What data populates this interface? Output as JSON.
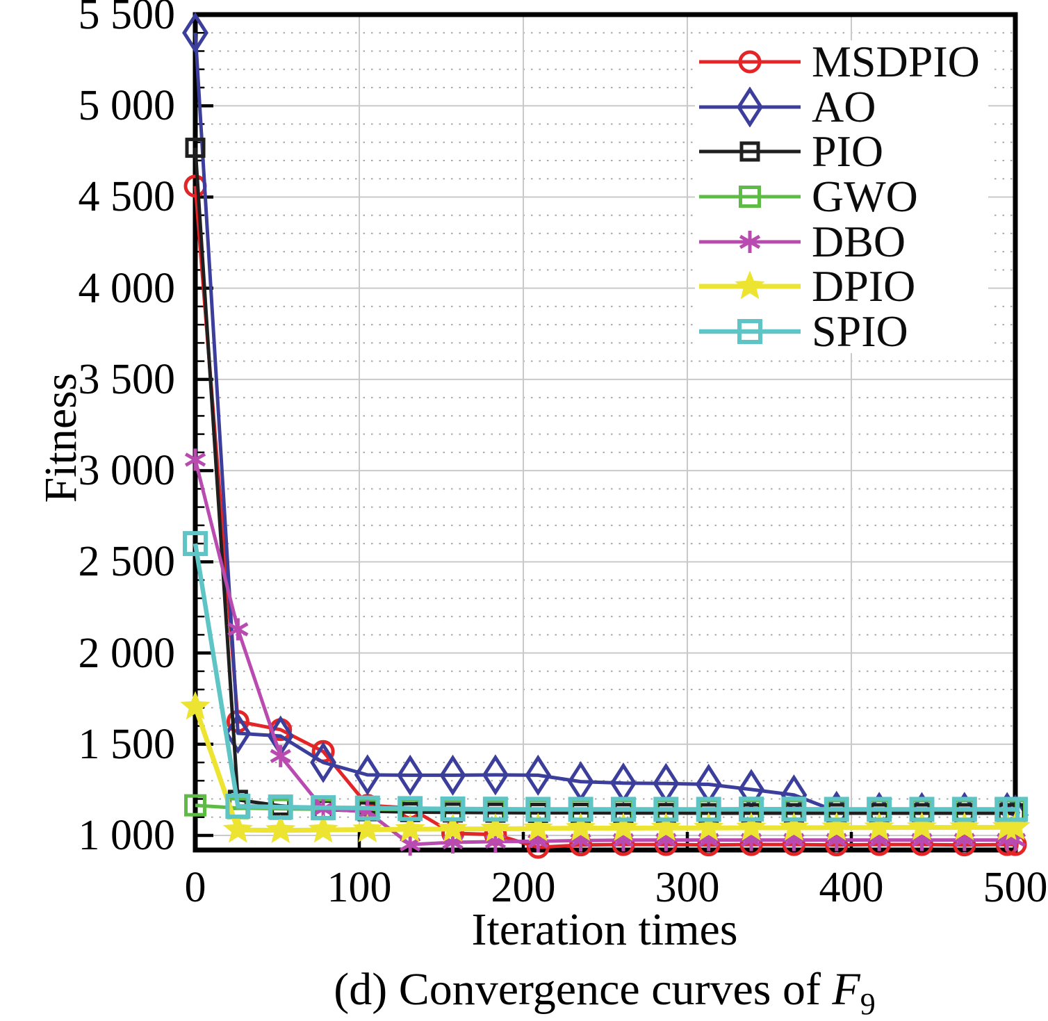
{
  "chart_data": {
    "type": "line",
    "title": "",
    "xlabel": "Iteration times",
    "ylabel": "Fitness",
    "caption": {
      "prefix": "(d) Convergence curves of ",
      "math": "F",
      "sub": "9"
    },
    "xlim": [
      0,
      500
    ],
    "ylim": [
      920,
      5500
    ],
    "grid": {
      "major": "solid",
      "minor_horizontal": "dotted"
    },
    "legend_position": "top-right-inside",
    "axis_color": "#000000",
    "grid_major_color": "#c9c9c9",
    "grid_minor_color": "#a8a8a8",
    "xticks": [
      {
        "value": 0,
        "label": "0"
      },
      {
        "value": 100,
        "label": "100"
      },
      {
        "value": 200,
        "label": "200"
      },
      {
        "value": 300,
        "label": "300"
      },
      {
        "value": 400,
        "label": "400"
      },
      {
        "value": 500,
        "label": "500"
      }
    ],
    "yticks": [
      {
        "value": 1000,
        "label": "1 000"
      },
      {
        "value": 1500,
        "label": "1 500"
      },
      {
        "value": 2000,
        "label": "2 000"
      },
      {
        "value": 2500,
        "label": "2 500"
      },
      {
        "value": 3000,
        "label": "3 000"
      },
      {
        "value": 3500,
        "label": "3 500"
      },
      {
        "value": 4000,
        "label": "4 000"
      },
      {
        "value": 4500,
        "label": "4 500"
      },
      {
        "value": 5000,
        "label": "5 000"
      },
      {
        "value": 5500,
        "label": "5 500"
      }
    ],
    "x": [
      0,
      26,
      52,
      78,
      105,
      131,
      157,
      183,
      209,
      235,
      261,
      287,
      313,
      339,
      365,
      391,
      417,
      443,
      469,
      495,
      500
    ],
    "series": [
      {
        "name": "MSDPIO",
        "color": "#e42528",
        "marker": "circle",
        "values": [
          4560,
          1625,
          1580,
          1460,
          1165,
          1150,
          1012,
          1005,
          935,
          948,
          950,
          950,
          948,
          950,
          950,
          948,
          950,
          950,
          948,
          950,
          950
        ]
      },
      {
        "name": "AO",
        "color": "#3c3e9b",
        "marker": "diamond",
        "values": [
          5400,
          1560,
          1545,
          1400,
          1332,
          1330,
          1330,
          1332,
          1330,
          1295,
          1287,
          1285,
          1280,
          1252,
          1222,
          1132,
          1126,
          1125,
          1126,
          1125,
          1112
        ]
      },
      {
        "name": "PIO",
        "color": "#1f1f1f",
        "marker": "square",
        "values": [
          4770,
          1195,
          1162,
          1142,
          1133,
          1128,
          1126,
          1125,
          1124,
          1124,
          1123,
          1123,
          1122,
          1122,
          1122,
          1122,
          1122,
          1122,
          1122,
          1122,
          1122
        ]
      },
      {
        "name": "GWO",
        "color": "#5dbb46",
        "marker": "square",
        "values": [
          1165,
          1150,
          1146,
          1144,
          1143,
          1142,
          1141,
          1140,
          1140,
          1140,
          1140,
          1140,
          1140,
          1140,
          1140,
          1140,
          1140,
          1140,
          1140,
          1140,
          1140
        ]
      },
      {
        "name": "DBO",
        "color": "#b94ab0",
        "marker": "asterisk",
        "values": [
          3060,
          2130,
          1435,
          1145,
          1130,
          950,
          962,
          966,
          968,
          972,
          974,
          975,
          975,
          975,
          975,
          975,
          975,
          975,
          975,
          975,
          975
        ]
      },
      {
        "name": "DPIO",
        "color": "#ede431",
        "marker": "star",
        "values": [
          1705,
          1030,
          1028,
          1030,
          1032,
          1034,
          1035,
          1036,
          1038,
          1040,
          1040,
          1041,
          1041,
          1042,
          1042,
          1043,
          1043,
          1044,
          1044,
          1045,
          1045
        ]
      },
      {
        "name": "SPIO",
        "color": "#5fc4c6",
        "marker": "square",
        "values": [
          2600,
          1160,
          1156,
          1152,
          1150,
          1147,
          1145,
          1144,
          1143,
          1143,
          1143,
          1143,
          1143,
          1144,
          1144,
          1143,
          1143,
          1143,
          1143,
          1143,
          1143
        ]
      }
    ]
  }
}
